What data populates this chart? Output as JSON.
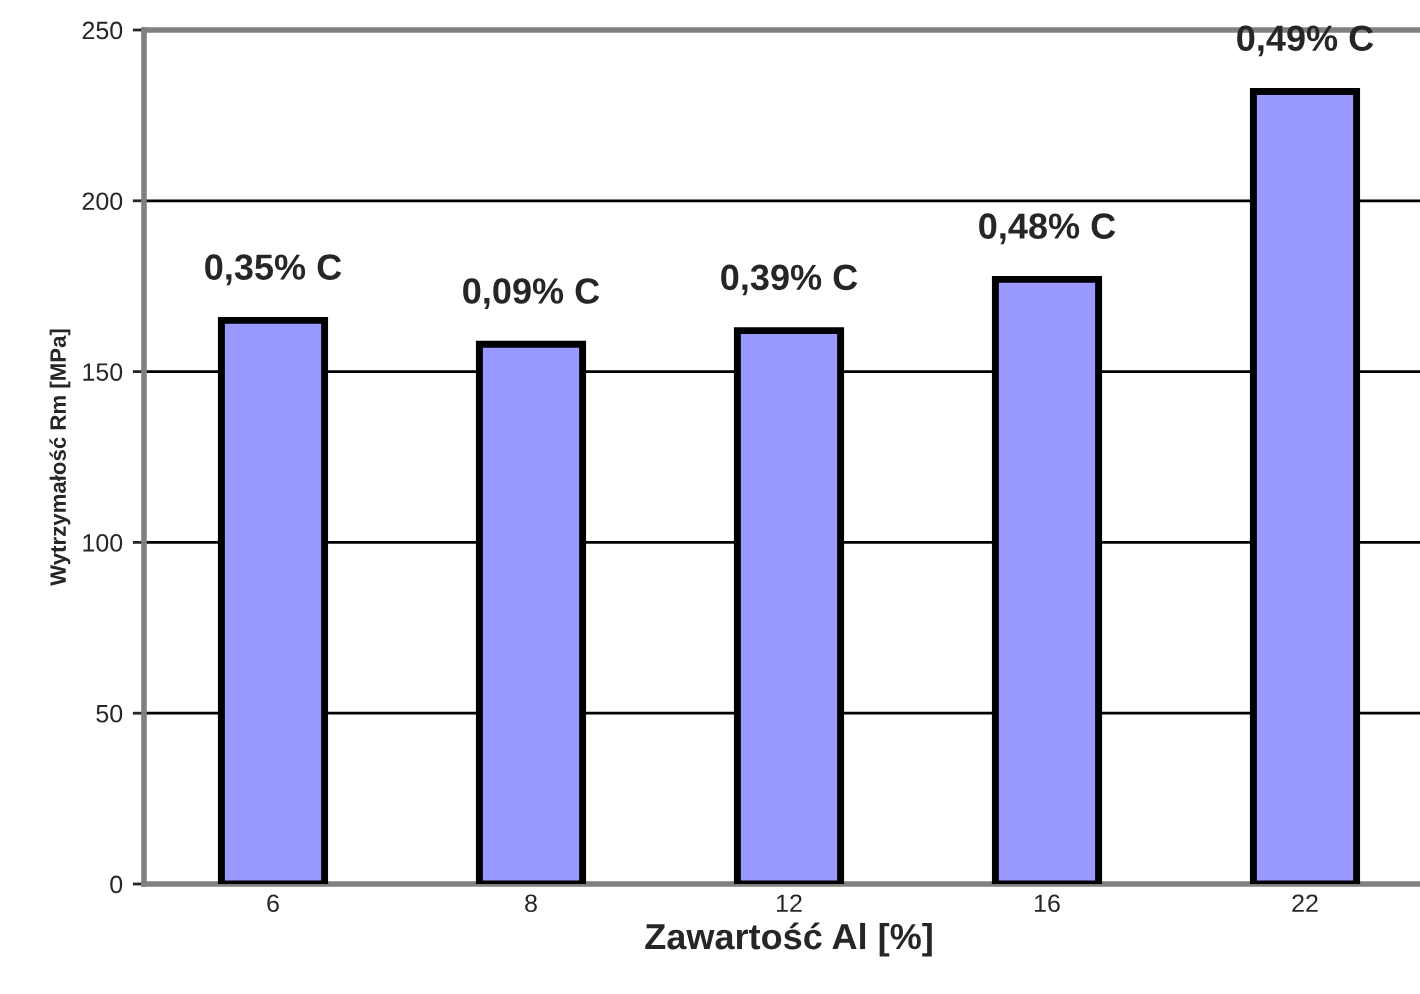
{
  "chart_data": {
    "type": "bar",
    "xlabel": "Zawartość Al [%]",
    "ylabel": "Wytrzymałość Rm [MPa]",
    "categories": [
      "6",
      "8",
      "12",
      "16",
      "22"
    ],
    "series": [
      {
        "color": "#9999ff",
        "values": [
          165,
          158,
          162,
          177,
          232
        ]
      }
    ],
    "ylim": [
      0,
      250
    ],
    "yticks": [
      0,
      50,
      100,
      150,
      200,
      250
    ],
    "grid": "y",
    "annotations": [
      {
        "text": "0,35% C",
        "x": "6",
        "y": 165
      },
      {
        "text": "0,09% C",
        "x": "8",
        "y": 158
      },
      {
        "text": "0,39% C",
        "x": "12",
        "y": 162
      },
      {
        "text": "0,48% C",
        "x": "16",
        "y": 177
      },
      {
        "text": "0,49% C",
        "x": "22",
        "y": 232
      }
    ]
  }
}
